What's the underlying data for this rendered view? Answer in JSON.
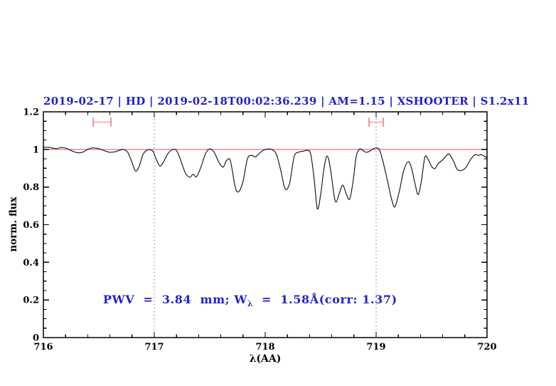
{
  "title": "2019-02-17 | HD | 2019-02-18T00:02:36.239 | AM=1.15 | XSHOOTER | S1.2x11",
  "annotation": {
    "pre": "PWV  =  3.84  mm; W",
    "sub": "λ",
    "post": "  =  1.58Å(corr: 1.37)",
    "full_text": "PWV = 3.84 mm; W_λ = 1.58Å(corr: 1.37)"
  },
  "colors": {
    "accent_blue": "#2121cc",
    "reference_line_red": "#ee8080",
    "errorbar_cap_pink": "#ef8686",
    "errorbar_bar_pink": "#f6b1b1",
    "dotted_guide_gray": "#777777",
    "spectrum_black": "#141414",
    "frame_black": "#000000"
  },
  "chart_data": {
    "type": "line",
    "title": "2019-02-17 | HD | 2019-02-18T00:02:36.239 | AM=1.15 | XSHOOTER | S1.2x11",
    "xlabel": "λ(AA)",
    "ylabel": "norm. flux",
    "xlim": [
      716,
      720
    ],
    "ylim": [
      0,
      1.2
    ],
    "grid": "off",
    "legend": "none",
    "x_ticks": {
      "major": [
        716,
        717,
        718,
        719,
        720
      ],
      "labels": [
        "716",
        "717",
        "718",
        "719",
        "720"
      ],
      "minor_step": 0.2
    },
    "y_ticks": {
      "major": [
        0,
        0.2,
        0.4,
        0.6,
        0.8,
        1,
        1.2
      ],
      "labels": [
        "0",
        "0.2",
        "0.4",
        "0.6",
        "0.8",
        "1",
        "1.2"
      ],
      "minor_step": 0.05
    },
    "vlines_dotted": [
      717,
      719
    ],
    "hline_reference": {
      "y": 1.0
    },
    "errorbars": [
      {
        "x_center": 716.53,
        "x_halfwidth": 0.08,
        "y": 1.145,
        "cap_halfheight": 0.024
      },
      {
        "x_center": 719.0,
        "x_halfwidth": 0.064,
        "y": 1.145,
        "cap_halfheight": 0.024
      }
    ],
    "series": [
      {
        "name": "normalized telluric spectrum",
        "x": [
          716.0,
          716.04,
          716.08,
          716.12,
          716.16,
          716.2,
          716.24,
          716.28,
          716.32,
          716.36,
          716.4,
          716.44,
          716.48,
          716.52,
          716.56,
          716.6,
          716.64,
          716.68,
          716.72,
          716.76,
          716.8,
          716.83,
          716.86,
          716.9,
          716.94,
          716.98,
          717.0,
          717.02,
          717.05,
          717.08,
          717.12,
          717.16,
          717.2,
          717.24,
          717.28,
          717.32,
          717.35,
          717.38,
          717.42,
          717.46,
          717.5,
          717.54,
          717.58,
          717.62,
          717.65,
          717.68,
          717.7,
          717.73,
          717.76,
          717.8,
          717.84,
          717.88,
          717.91,
          717.94,
          717.98,
          718.02,
          718.06,
          718.1,
          718.14,
          718.18,
          718.22,
          718.26,
          718.3,
          718.34,
          718.38,
          718.41,
          718.44,
          718.47,
          718.5,
          718.53,
          718.56,
          718.59,
          718.62,
          718.64,
          718.67,
          718.7,
          718.73,
          718.76,
          718.79,
          718.82,
          718.85,
          718.88,
          718.91,
          718.94,
          718.97,
          719.0,
          719.03,
          719.06,
          719.1,
          719.14,
          719.17,
          719.21,
          719.25,
          719.29,
          719.32,
          719.35,
          719.38,
          719.41,
          719.44,
          719.47,
          719.5,
          719.53,
          719.56,
          719.6,
          719.63,
          719.66,
          719.7,
          719.73,
          719.77,
          719.81,
          719.85,
          719.89,
          719.92,
          719.95,
          720.0
        ],
        "y": [
          1.01,
          1.012,
          1.007,
          1.004,
          1.01,
          1.007,
          0.997,
          0.987,
          0.982,
          0.987,
          1.0,
          1.008,
          1.006,
          1.0,
          0.991,
          0.985,
          0.987,
          0.994,
          1.0,
          0.985,
          0.93,
          0.885,
          0.905,
          0.975,
          0.997,
          0.995,
          0.975,
          0.945,
          0.912,
          0.93,
          0.975,
          0.998,
          0.995,
          0.94,
          0.875,
          0.852,
          0.868,
          0.855,
          0.905,
          0.975,
          1.003,
          0.985,
          0.935,
          0.906,
          0.94,
          0.948,
          0.9,
          0.8,
          0.775,
          0.83,
          0.95,
          0.968,
          0.96,
          0.975,
          0.995,
          1.002,
          1.0,
          0.975,
          0.89,
          0.79,
          0.82,
          0.96,
          0.985,
          0.99,
          0.995,
          0.975,
          0.85,
          0.685,
          0.76,
          0.9,
          0.965,
          0.89,
          0.76,
          0.72,
          0.77,
          0.81,
          0.765,
          0.735,
          0.82,
          0.96,
          1.002,
          0.995,
          0.985,
          0.99,
          1.002,
          1.008,
          0.998,
          0.94,
          0.84,
          0.735,
          0.695,
          0.78,
          0.89,
          0.935,
          0.9,
          0.82,
          0.76,
          0.84,
          0.96,
          0.945,
          0.91,
          0.898,
          0.925,
          0.945,
          0.965,
          0.975,
          0.935,
          0.895,
          0.888,
          0.905,
          0.945,
          0.972,
          0.968,
          0.972,
          0.955
        ]
      }
    ]
  }
}
